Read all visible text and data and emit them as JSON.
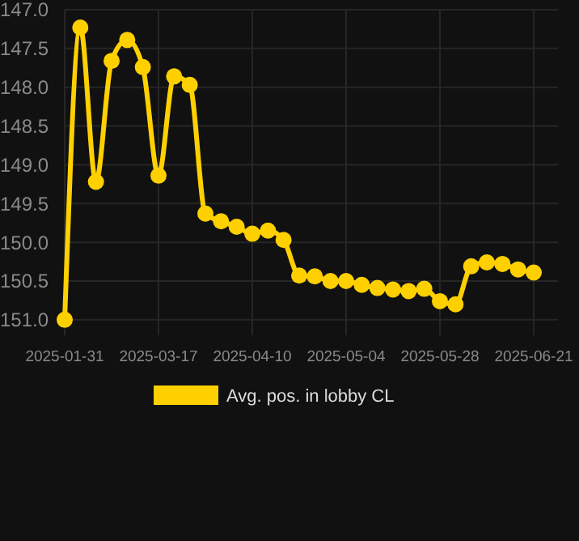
{
  "chart_data": {
    "type": "line",
    "categories": [
      "2025-01-31",
      null,
      null,
      null,
      null,
      null,
      "2025-03-17",
      null,
      null,
      null,
      null,
      null,
      "2025-04-10",
      null,
      null,
      null,
      null,
      null,
      "2025-05-04",
      null,
      null,
      null,
      null,
      null,
      "2025-05-28",
      null,
      null,
      null,
      null,
      null,
      "2025-06-21"
    ],
    "series": [
      {
        "name": "Avg. pos. in lobby CL",
        "color": "#ffd000",
        "values": [
          151.0,
          147.23,
          149.22,
          147.66,
          147.39,
          147.74,
          149.14,
          147.86,
          147.97,
          149.63,
          149.73,
          149.8,
          149.89,
          149.85,
          149.97,
          150.43,
          150.44,
          150.5,
          150.5,
          150.55,
          150.59,
          150.61,
          150.63,
          150.6,
          150.76,
          150.8,
          150.31,
          150.26,
          150.28,
          150.35,
          150.39
        ]
      }
    ],
    "ylim": [
      151.2,
      147.0
    ],
    "yticks": [
      {
        "value": 147,
        "label": "147.0"
      },
      {
        "value": 147.5,
        "label": "147.5"
      },
      {
        "value": 148,
        "label": "148.0"
      },
      {
        "value": 148.5,
        "label": "148.5"
      },
      {
        "value": 149,
        "label": "149.0"
      },
      {
        "value": 149.5,
        "label": "149.5"
      },
      {
        "value": 150,
        "label": "150.0"
      },
      {
        "value": 150.5,
        "label": "150.5"
      },
      {
        "value": 151,
        "label": "151.0"
      }
    ],
    "grid": true,
    "legend": "bottom",
    "marker": "circle",
    "line_style": "solid"
  }
}
